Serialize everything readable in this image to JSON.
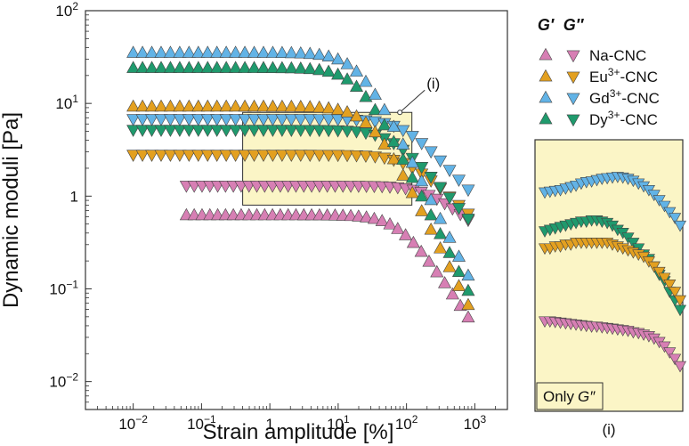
{
  "chart_data": [
    {
      "type": "scatter",
      "xlabel": "Strain amplitude [%]",
      "ylabel": "Dynamic moduli [Pa]",
      "xscale": "log",
      "yscale": "log",
      "xlim": [
        0.002,
        3000
      ],
      "ylim": [
        0.005,
        100
      ],
      "x_ticks": [
        {
          "value": 0.01,
          "base": "10",
          "exp": "−2"
        },
        {
          "value": 0.1,
          "base": "10",
          "exp": "−1"
        },
        {
          "value": 1,
          "base": "1",
          "exp": ""
        },
        {
          "value": 10,
          "base": "10",
          "exp": "1"
        },
        {
          "value": 100,
          "base": "10",
          "exp": "2"
        },
        {
          "value": 1000,
          "base": "10",
          "exp": "3"
        }
      ],
      "y_ticks": [
        {
          "value": 0.01,
          "base": "10",
          "exp": "−2"
        },
        {
          "value": 0.1,
          "base": "10",
          "exp": "−1"
        },
        {
          "value": 1,
          "base": "1",
          "exp": ""
        },
        {
          "value": 10,
          "base": "10",
          "exp": "1"
        },
        {
          "value": 100,
          "base": "10",
          "exp": "2"
        }
      ],
      "legend": {
        "placement": "right",
        "header_gprime": "G′",
        "header_gdouble": "G″",
        "entries": [
          {
            "series": "Na",
            "label_base": "Na-CNC",
            "label_sup": "",
            "label_rest": ""
          },
          {
            "series": "Eu",
            "label_base": "Eu",
            "label_sup": "3+",
            "label_rest": "-CNC"
          },
          {
            "series": "Gd",
            "label_base": "Gd",
            "label_sup": "3+",
            "label_rest": "-CNC"
          },
          {
            "series": "Dy",
            "label_base": "Dy",
            "label_sup": "3+",
            "label_rest": "-CNC"
          }
        ]
      },
      "annotation": {
        "label": "(i)",
        "region": {
          "x": [
            0.4,
            120
          ],
          "y": [
            0.8,
            8
          ]
        }
      },
      "series": [
        {
          "key": "Na",
          "color": "#d77fb4",
          "gprime": {
            "x0": 0.06,
            "x1": 800,
            "plateau": 0.62,
            "xc": 80,
            "n": 1.1
          },
          "gdouble": {
            "x0": 0.06,
            "x1": 800,
            "plateau": 1.3,
            "xc": 200,
            "n": 0.6
          }
        },
        {
          "key": "Eu",
          "color": "#e3a020",
          "gprime": {
            "x0": 0.01,
            "x1": 800,
            "plateau": 9.2,
            "xc": 30,
            "n": 1.5
          },
          "gdouble": {
            "x0": 0.01,
            "x1": 800,
            "plateau": 2.8,
            "xc": 100,
            "n": 0.7
          }
        },
        {
          "key": "Gd",
          "color": "#62b3e6",
          "gprime": {
            "x0": 0.01,
            "x1": 800,
            "plateau": 35,
            "xc": 20,
            "n": 1.5
          },
          "gdouble": {
            "x0": 0.01,
            "x1": 800,
            "plateau": 6.8,
            "xc": 90,
            "n": 0.8
          }
        },
        {
          "key": "Dy",
          "color": "#1f9a6d",
          "gprime": {
            "x0": 0.01,
            "x1": 800,
            "plateau": 24,
            "xc": 20,
            "n": 1.5
          },
          "gdouble": {
            "x0": 0.01,
            "x1": 800,
            "plateau": 5.2,
            "xc": 60,
            "n": 0.85
          }
        }
      ]
    },
    {
      "type": "scatter",
      "title": "(i)",
      "note_base": "Only",
      "note_var": "G″",
      "series": [
        {
          "key": "Gd",
          "color": "#62b3e6",
          "values": [
            0.78,
            0.79,
            0.8,
            0.81,
            0.83,
            0.85,
            0.87,
            0.9,
            0.92,
            0.93,
            0.95,
            0.97,
            0.98,
            0.99,
            1.0,
            0.99,
            0.97,
            0.94,
            0.9,
            0.86,
            0.81,
            0.75,
            0.69,
            0.63,
            0.57,
            0.52,
            0.46
          ]
        },
        {
          "key": "Dy",
          "color": "#1f9a6d",
          "values": [
            0.42,
            0.43,
            0.44,
            0.45,
            0.46,
            0.47,
            0.48,
            0.49,
            0.49,
            0.5,
            0.5,
            0.49,
            0.48,
            0.46,
            0.43,
            0.41,
            0.38,
            0.35,
            0.32,
            0.29,
            0.27,
            0.24,
            0.21,
            0.19,
            0.16,
            0.14,
            0.12
          ]
        },
        {
          "key": "Eu",
          "color": "#e3a020",
          "values": [
            0.32,
            0.32,
            0.33,
            0.33,
            0.34,
            0.34,
            0.35,
            0.35,
            0.35,
            0.35,
            0.35,
            0.35,
            0.35,
            0.34,
            0.33,
            0.32,
            0.31,
            0.3,
            0.29,
            0.28,
            0.26,
            0.24,
            0.22,
            0.2,
            0.18,
            0.16,
            0.14
          ]
        },
        {
          "key": "Na",
          "color": "#d77fb4",
          "values": [
            0.1,
            0.1,
            0.099,
            0.098,
            0.097,
            0.096,
            0.095,
            0.094,
            0.093,
            0.092,
            0.092,
            0.091,
            0.09,
            0.089,
            0.088,
            0.087,
            0.086,
            0.084,
            0.083,
            0.081,
            0.079,
            0.076,
            0.072,
            0.067,
            0.061,
            0.055,
            0.049
          ]
        }
      ]
    }
  ]
}
